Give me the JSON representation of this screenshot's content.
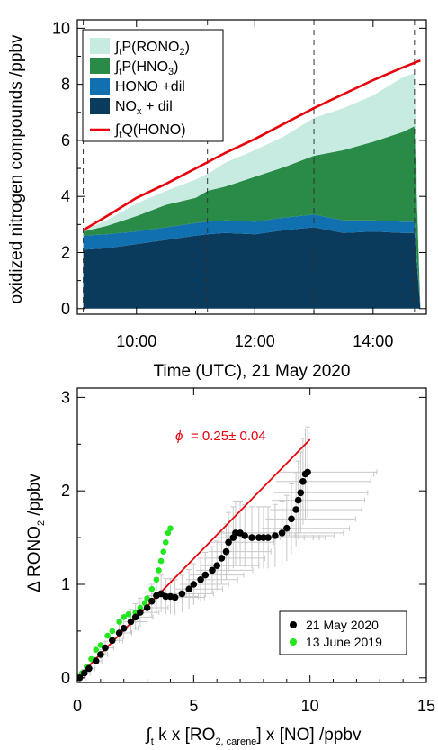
{
  "chart_data": [
    {
      "type": "area",
      "xlabel": "Time (UTC), 21 May 2020",
      "ylabel": "oxidized nitrogen compounds /ppbv",
      "x_ticks": [
        "10:00",
        "12:00",
        "14:00"
      ],
      "y_ticks": [
        "0",
        "2",
        "4",
        "6",
        "8",
        "10"
      ],
      "xlim": [
        9.0,
        14.9
      ],
      "ylim": [
        -0.2,
        10.3
      ],
      "x": [
        9.1,
        9.5,
        10.0,
        10.5,
        11.0,
        11.2,
        11.5,
        12.0,
        12.5,
        13.0,
        13.5,
        14.0,
        14.5,
        14.7,
        14.8
      ],
      "series": [
        {
          "name": "NOx + dil",
          "color": "#0a3a5c",
          "values": [
            2.1,
            2.15,
            2.3,
            2.45,
            2.6,
            2.65,
            2.7,
            2.65,
            2.8,
            2.9,
            2.7,
            2.75,
            2.7,
            2.7,
            0
          ]
        },
        {
          "name": "HONO +dil",
          "color": "#1070b0",
          "values": [
            0.5,
            0.5,
            0.45,
            0.45,
            0.45,
            0.45,
            0.45,
            0.45,
            0.45,
            0.45,
            0.45,
            0.4,
            0.4,
            0.4,
            0
          ]
        },
        {
          "name": "∫tP(HNO3)",
          "color": "#2a8a48",
          "values": [
            0.15,
            0.3,
            0.55,
            0.8,
            0.9,
            1.1,
            1.2,
            1.6,
            1.8,
            2.1,
            2.5,
            2.8,
            3.2,
            3.4,
            0
          ]
        },
        {
          "name": "∫tP(RONO2)",
          "color": "#c8ebe1",
          "values": [
            0.05,
            0.2,
            0.45,
            0.5,
            0.65,
            0.6,
            0.85,
            0.95,
            1.1,
            1.35,
            1.5,
            1.65,
            1.95,
            1.9,
            0
          ]
        }
      ],
      "line": {
        "name": "∫tQ(HONO)",
        "color": "#e8000b",
        "x": [
          9.1,
          9.5,
          10.0,
          10.5,
          11.0,
          11.5,
          12.0,
          12.5,
          13.0,
          13.5,
          14.0,
          14.5,
          14.8
        ],
        "values": [
          2.8,
          3.3,
          3.95,
          4.45,
          5.0,
          5.55,
          6.05,
          6.6,
          7.15,
          7.65,
          8.15,
          8.6,
          8.85
        ]
      },
      "dashed_lines_x": [
        9.1,
        11.2,
        13.0,
        14.7
      ],
      "legend_position": "top-left"
    },
    {
      "type": "scatter",
      "xlabel": "∫t k x [RO2, carene] x [NO] /ppbv",
      "ylabel": "Δ RONO2 /ppbv",
      "x_ticks": [
        "0",
        "5",
        "10",
        "15"
      ],
      "y_ticks": [
        "0",
        "1",
        "2",
        "3"
      ],
      "xlim": [
        0,
        15
      ],
      "ylim": [
        -0.05,
        3.1
      ],
      "annotation": "ϕ = 0.25± 0.04",
      "fit": {
        "color": "#e8000b",
        "x": [
          0,
          10
        ],
        "y": [
          0,
          2.55
        ]
      },
      "error_bar_color": "#c8c8c8",
      "legend_position": "bottom-right",
      "series": [
        {
          "name": "21 May 2020",
          "color": "#000000",
          "points": [
            [
              0.1,
              0.0
            ],
            [
              0.3,
              0.05
            ],
            [
              0.5,
              0.1
            ],
            [
              0.8,
              0.18
            ],
            [
              1.0,
              0.25
            ],
            [
              1.2,
              0.32
            ],
            [
              1.5,
              0.4
            ],
            [
              1.8,
              0.48
            ],
            [
              2.0,
              0.53
            ],
            [
              2.3,
              0.6
            ],
            [
              2.5,
              0.65
            ],
            [
              2.7,
              0.7
            ],
            [
              3.0,
              0.75
            ],
            [
              3.2,
              0.82
            ],
            [
              3.4,
              0.88
            ],
            [
              3.6,
              0.9
            ],
            [
              3.8,
              0.87
            ],
            [
              4.0,
              0.87
            ],
            [
              4.2,
              0.86
            ],
            [
              4.5,
              0.9
            ],
            [
              4.8,
              0.95
            ],
            [
              5.0,
              1.0
            ],
            [
              5.3,
              1.05
            ],
            [
              5.5,
              1.1
            ],
            [
              5.8,
              1.15
            ],
            [
              6.0,
              1.2
            ],
            [
              6.2,
              1.28
            ],
            [
              6.4,
              1.35
            ],
            [
              6.5,
              1.45
            ],
            [
              6.7,
              1.5
            ],
            [
              6.8,
              1.55
            ],
            [
              7.0,
              1.55
            ],
            [
              7.2,
              1.52
            ],
            [
              7.5,
              1.5
            ],
            [
              7.8,
              1.5
            ],
            [
              8.0,
              1.5
            ],
            [
              8.2,
              1.5
            ],
            [
              8.5,
              1.52
            ],
            [
              8.8,
              1.55
            ],
            [
              9.0,
              1.6
            ],
            [
              9.2,
              1.7
            ],
            [
              9.4,
              1.8
            ],
            [
              9.5,
              1.9
            ],
            [
              9.6,
              1.98
            ],
            [
              9.7,
              2.1
            ],
            [
              9.8,
              2.18
            ],
            [
              9.9,
              2.2
            ]
          ]
        },
        {
          "name": "13 June 2019",
          "color": "#22e61e",
          "points": [
            [
              0.2,
              0.05
            ],
            [
              0.4,
              0.12
            ],
            [
              0.6,
              0.2
            ],
            [
              0.8,
              0.3
            ],
            [
              1.0,
              0.35
            ],
            [
              1.3,
              0.45
            ],
            [
              1.5,
              0.5
            ],
            [
              1.8,
              0.6
            ],
            [
              2.0,
              0.65
            ],
            [
              2.2,
              0.68
            ],
            [
              2.5,
              0.7
            ],
            [
              2.7,
              0.75
            ],
            [
              2.9,
              0.8
            ],
            [
              3.0,
              0.85
            ],
            [
              3.2,
              0.95
            ],
            [
              3.4,
              1.05
            ],
            [
              3.5,
              1.15
            ],
            [
              3.6,
              1.25
            ],
            [
              3.7,
              1.35
            ],
            [
              3.8,
              1.45
            ],
            [
              3.9,
              1.55
            ],
            [
              4.0,
              1.6
            ]
          ]
        }
      ]
    }
  ]
}
